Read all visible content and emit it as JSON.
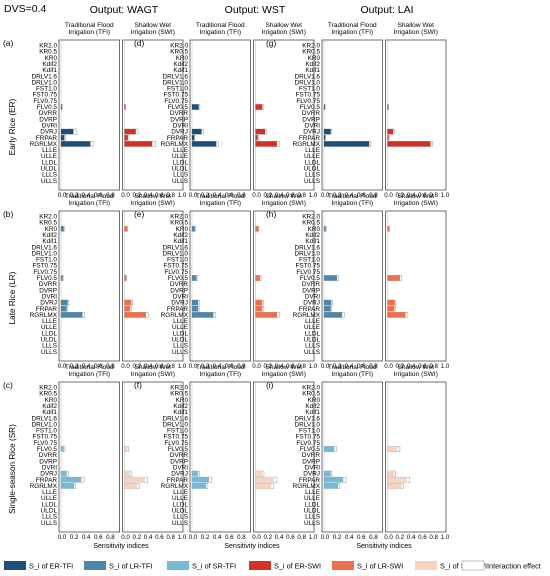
{
  "figure": {
    "dvs_label": "DVS=0.4",
    "output_titles": [
      "Output: WAGT",
      "Output: WST",
      "Output: LAI"
    ],
    "subtitles": [
      "Traditional Flood\nIrrigation (TFI)",
      "Shallow Wet\nIrrigation (SWI)"
    ],
    "row_labels": [
      "Early Rice (ER)",
      "Late Rice (LR)",
      "Single-season Rice (SR)"
    ],
    "panel_labels": [
      "(a)",
      "(b)",
      "(c)",
      "(d)",
      "(e)",
      "(f)",
      "(g)",
      "(h)",
      "(i)"
    ],
    "xlabel": "Sensitivity indices",
    "tick_labels": [
      "0.0",
      "0.2",
      "0.4",
      "0.6",
      "0.8",
      "0.0",
      "0.2",
      "0.4",
      "0.6",
      "0.8",
      "1.0"
    ]
  },
  "legend": [
    {
      "label": "S_i of ER-TFI",
      "color": "#1f4e79"
    },
    {
      "label": "S_i of LR-TFI",
      "color": "#4f86a8"
    },
    {
      "label": "S_i of SR-TFI",
      "color": "#74bad8"
    },
    {
      "label": "S_i of ER-SWI",
      "color": "#d23227"
    },
    {
      "label": "S_i of LR-SWI",
      "color": "#ee6f4c"
    },
    {
      "label": "S_i of SR-SWI",
      "color": "#f8d3c0"
    },
    {
      "label": "Interaction effect",
      "color": "#ffffff"
    }
  ],
  "chart_data": {
    "type": "bar",
    "orientation": "horizontal",
    "parameters": [
      "KR2.0",
      "KR0.5",
      "KR0",
      "Kdif2",
      "Kdif1",
      "DRLV1.6",
      "DRLV1.0",
      "FST1.0",
      "FST0.75",
      "FLV0.75",
      "FLV0.5",
      "DVRR",
      "DVRP",
      "DVRI",
      "DVRJ",
      "FRPAR",
      "RGRLMX",
      "LLLE",
      "ULLE",
      "LLDL",
      "ULDL",
      "LLLS",
      "ULLS"
    ],
    "xlim": [
      0,
      1.0
    ],
    "panels": [
      {
        "output": "WAGT",
        "crop": "ER",
        "tfi_color": "#1f4e79",
        "swi_color": "#d23227",
        "tfi": {
          "FLV0.5": [
            0.005,
            0.01
          ],
          "DVRJ": [
            0.22,
            0.28
          ],
          "FRPAR": [
            0.06,
            0.08
          ],
          "RGRLMX": [
            0.52,
            0.57
          ]
        },
        "swi": {
          "FLV0.5": [
            0.005,
            0.01
          ],
          "DVRJ": [
            0.2,
            0.24
          ],
          "FRPAR": [
            0.06,
            0.08
          ],
          "RGRLMX": [
            0.49,
            0.55
          ]
        }
      },
      {
        "output": "WAGT",
        "crop": "LR",
        "tfi_color": "#4f86a8",
        "swi_color": "#ee6f4c",
        "tfi": {
          "KR0": [
            0.05,
            0.06
          ],
          "FLV0.5": [
            0.03,
            0.04
          ],
          "DVRJ": [
            0.12,
            0.14
          ],
          "FRPAR": [
            0.1,
            0.12
          ],
          "RGRLMX": [
            0.38,
            0.42
          ]
        },
        "swi": {
          "KR0": [
            0.05,
            0.06
          ],
          "FLV0.5": [
            0.03,
            0.04
          ],
          "DVRJ": [
            0.12,
            0.14
          ],
          "FRPAR": [
            0.1,
            0.12
          ],
          "RGRLMX": [
            0.38,
            0.42
          ]
        }
      },
      {
        "output": "WAGT",
        "crop": "SR",
        "tfi_color": "#74bad8",
        "swi_color": "#f8d3c0",
        "tfi": {
          "FLV0.5": [
            0.05,
            0.07
          ],
          "DVRJ": [
            0.1,
            0.13
          ],
          "FRPAR": [
            0.36,
            0.41
          ],
          "RGRLMX": [
            0.23,
            0.26
          ]
        },
        "swi": {
          "FLV0.5": [
            0.05,
            0.07
          ],
          "DVRJ": [
            0.1,
            0.13
          ],
          "FRPAR": [
            0.36,
            0.41
          ],
          "RGRLMX": [
            0.22,
            0.26
          ]
        }
      },
      {
        "output": "WST",
        "crop": "ER",
        "tfi_color": "#1f4e79",
        "swi_color": "#d23227",
        "tfi": {
          "FLV0.5": [
            0.12,
            0.14
          ],
          "DVRJ": [
            0.17,
            0.2
          ],
          "FRPAR": [
            0.04,
            0.05
          ],
          "RGRLMX": [
            0.43,
            0.47
          ]
        },
        "swi": {
          "FLV0.5": [
            0.12,
            0.14
          ],
          "DVRJ": [
            0.17,
            0.2
          ],
          "FRPAR": [
            0.04,
            0.05
          ],
          "RGRLMX": [
            0.38,
            0.42
          ]
        }
      },
      {
        "output": "WST",
        "crop": "LR",
        "tfi_color": "#4f86a8",
        "swi_color": "#ee6f4c",
        "tfi": {
          "KR0": [
            0.05,
            0.06
          ],
          "FLV0.5": [
            0.08,
            0.1
          ],
          "DVRJ": [
            0.11,
            0.13
          ],
          "FRPAR": [
            0.11,
            0.13
          ],
          "RGRLMX": [
            0.38,
            0.42
          ]
        },
        "swi": {
          "KR0": [
            0.05,
            0.06
          ],
          "FLV0.5": [
            0.08,
            0.1
          ],
          "DVRJ": [
            0.12,
            0.14
          ],
          "FRPAR": [
            0.12,
            0.14
          ],
          "RGRLMX": [
            0.38,
            0.42
          ]
        }
      },
      {
        "output": "WST",
        "crop": "SR",
        "tfi_color": "#74bad8",
        "swi_color": "#f8d3c0",
        "tfi": {
          "DVRJ": [
            0.11,
            0.13
          ],
          "FRPAR": [
            0.3,
            0.35
          ],
          "RGRLMX": [
            0.25,
            0.28
          ]
        },
        "swi": {
          "DVRJ": [
            0.12,
            0.15
          ],
          "FRPAR": [
            0.32,
            0.38
          ],
          "RGRLMX": [
            0.28,
            0.32
          ]
        }
      },
      {
        "output": "LAI",
        "crop": "ER",
        "tfi_color": "#1f4e79",
        "swi_color": "#d23227",
        "tfi": {
          "FLV0.5": [
            0.01,
            0.02
          ],
          "DVRJ": [
            0.12,
            0.14
          ],
          "FRPAR": [
            0.02,
            0.03
          ],
          "RGRLMX": [
            0.8,
            0.83
          ]
        },
        "swi": {
          "FLV0.5": [
            0.01,
            0.02
          ],
          "DVRJ": [
            0.1,
            0.12
          ],
          "FRPAR": [
            0.02,
            0.03
          ],
          "RGRLMX": [
            0.76,
            0.8
          ]
        }
      },
      {
        "output": "LAI",
        "crop": "LR",
        "tfi_color": "#4f86a8",
        "swi_color": "#ee6f4c",
        "tfi": {
          "KR0": [
            0.03,
            0.04
          ],
          "FLV0.5": [
            0.23,
            0.26
          ],
          "DVRJ": [
            0.13,
            0.15
          ],
          "FRPAR": [
            0.12,
            0.14
          ],
          "RGRLMX": [
            0.32,
            0.36
          ]
        },
        "swi": {
          "KR0": [
            0.03,
            0.04
          ],
          "FLV0.5": [
            0.22,
            0.25
          ],
          "DVRJ": [
            0.13,
            0.15
          ],
          "FRPAR": [
            0.12,
            0.14
          ],
          "RGRLMX": [
            0.32,
            0.36
          ]
        }
      },
      {
        "output": "LAI",
        "crop": "SR",
        "tfi_color": "#74bad8",
        "swi_color": "#f8d3c0",
        "tfi": {
          "FLV0.5": [
            0.18,
            0.22
          ],
          "DVRJ": [
            0.12,
            0.14
          ],
          "FRPAR": [
            0.34,
            0.39
          ],
          "RGRLMX": [
            0.25,
            0.28
          ]
        },
        "swi": {
          "FLV0.5": [
            0.18,
            0.22
          ],
          "DVRJ": [
            0.12,
            0.14
          ],
          "FRPAR": [
            0.34,
            0.39
          ],
          "RGRLMX": [
            0.25,
            0.28
          ]
        }
      }
    ]
  }
}
